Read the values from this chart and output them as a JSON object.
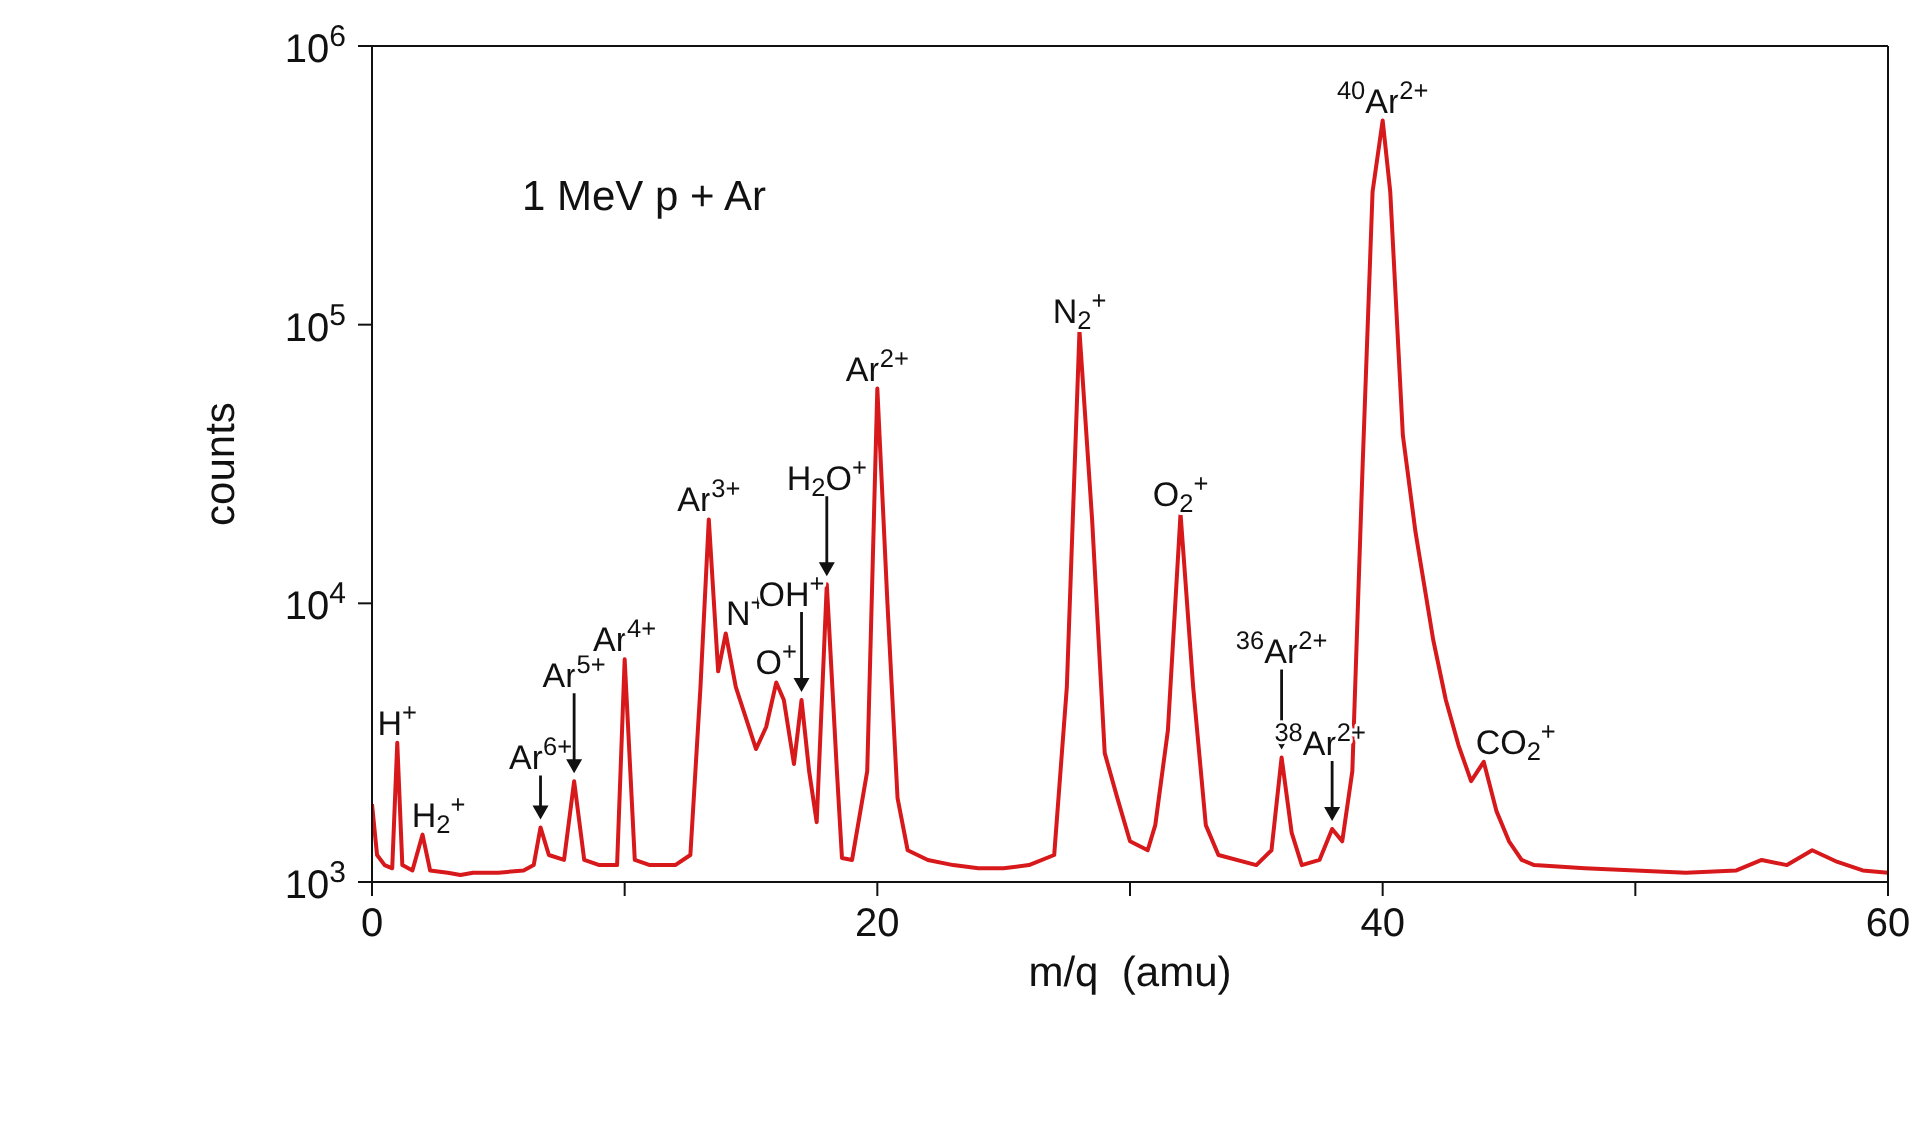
{
  "chart_data": {
    "type": "line",
    "xlabel": "m/q  (amu)",
    "ylabel": "counts",
    "log": "y",
    "marker": "none",
    "line_style": "solid",
    "xlim": [
      0,
      60
    ],
    "xticks": [
      0,
      {
        "value": 10,
        "label": null
      },
      20,
      {
        "value": 30,
        "label": null
      },
      40,
      {
        "value": 50,
        "label": null
      },
      60
    ],
    "ylim": [
      1000,
      1000000
    ],
    "yticks": [
      {
        "value": 1000,
        "label": "10$^{3}$"
      },
      {
        "value": 10000,
        "label": "10$^{4}$"
      },
      {
        "value": 100000,
        "label": "10$^{5}$"
      },
      {
        "value": 1000000,
        "label": "10$^{6}$"
      }
    ],
    "series": [
      {
        "color": "#d7191c",
        "x": [
          0,
          0.2,
          0.5,
          0.8,
          1.0,
          1.2,
          1.6,
          2.0,
          2.3,
          3,
          3.5,
          4,
          5,
          6,
          6.4,
          6.67,
          7,
          7.6,
          8.0,
          8.4,
          9,
          9.7,
          10.0,
          10.4,
          11,
          12,
          12.6,
          13.0,
          13.33,
          13.7,
          14.0,
          14.4,
          15.2,
          15.6,
          16.0,
          16.3,
          16.7,
          17.0,
          17.3,
          17.6,
          18.0,
          18.4,
          18.6,
          19,
          19.6,
          20.0,
          20.4,
          20.8,
          21.2,
          22,
          23,
          24,
          25,
          26,
          27,
          27.5,
          28.0,
          28.5,
          29,
          29.5,
          30,
          30.7,
          31,
          31.5,
          32,
          32.5,
          33,
          33.5,
          35,
          35.6,
          36,
          36.4,
          36.8,
          37.5,
          38,
          38.4,
          38.8,
          39.2,
          39.6,
          40,
          40.3,
          40.8,
          41.3,
          42,
          42.5,
          43,
          43.5,
          44,
          44.5,
          45,
          45.5,
          46,
          48,
          50,
          52,
          54,
          55,
          56,
          57,
          58,
          59,
          60
        ],
        "values": [
          1900,
          1250,
          1150,
          1120,
          3160,
          1150,
          1100,
          1480,
          1100,
          1080,
          1060,
          1080,
          1080,
          1100,
          1150,
          1570,
          1250,
          1200,
          2300,
          1200,
          1150,
          1150,
          6300,
          1200,
          1150,
          1150,
          1250,
          5000,
          20000,
          5700,
          7800,
          5000,
          3000,
          3600,
          5200,
          4500,
          2650,
          4500,
          2500,
          1640,
          11700,
          2500,
          1220,
          1200,
          2500,
          59000,
          10000,
          2000,
          1300,
          1200,
          1150,
          1120,
          1120,
          1150,
          1250,
          5000,
          95000,
          20000,
          2900,
          2000,
          1400,
          1300,
          1600,
          3500,
          21000,
          5000,
          1600,
          1250,
          1150,
          1300,
          2800,
          1500,
          1150,
          1200,
          1550,
          1400,
          2500,
          30000,
          300000,
          540000,
          300000,
          40000,
          18000,
          7400,
          4500,
          3100,
          2300,
          2700,
          1800,
          1400,
          1200,
          1150,
          1120,
          1100,
          1080,
          1100,
          1200,
          1150,
          1300,
          1180,
          1100,
          1080
        ]
      }
    ],
    "annotations": [
      "1 MeV p + Ar",
      {
        "text": "H$^{+}$",
        "x": 1.0,
        "y": 3160
      },
      {
        "text": "H$_{2}$$^{+}$",
        "x": 2.0,
        "y": 1480
      },
      {
        "text": "Ar$^{6+}$",
        "x": 6.67,
        "y": 1570
      },
      {
        "text": "Ar$^{5+}$",
        "x": 8.0,
        "y": 2300
      },
      {
        "text": "Ar$^{4+}$",
        "x": 10.0,
        "y": 6300
      },
      {
        "text": "Ar$^{3+}$",
        "x": 13.33,
        "y": 20000
      },
      {
        "text": "N$^{+}$",
        "x": 14.0,
        "y": 7800
      },
      {
        "text": "O$^{+}$",
        "x": 16.0,
        "y": 5200
      },
      {
        "text": "OH$^{+}$",
        "x": 17.0,
        "y": 4500
      },
      {
        "text": "H$_{2}$O$^{+}$",
        "x": 18.0,
        "y": 11700
      },
      {
        "text": "Ar$^{2+}$",
        "x": 20.0,
        "y": 59000
      },
      {
        "text": "N$_{2}$$^{+}$",
        "x": 28.0,
        "y": 95000
      },
      {
        "text": "O$_{2}$$^{+}$",
        "x": 32.0,
        "y": 21000
      },
      {
        "text": "$^{36}$Ar$^{2+}$",
        "x": 36.0,
        "y": 2800
      },
      {
        "text": "$^{38}$Ar$^{2+}$",
        "x": 38.0,
        "y": 1550
      },
      {
        "text": "$^{40}$Ar$^{2+}$",
        "x": 40.0,
        "y": 540000
      },
      {
        "text": "CO$_{2}$$^{+}$",
        "x": 44.0,
        "y": 2700
      }
    ]
  }
}
